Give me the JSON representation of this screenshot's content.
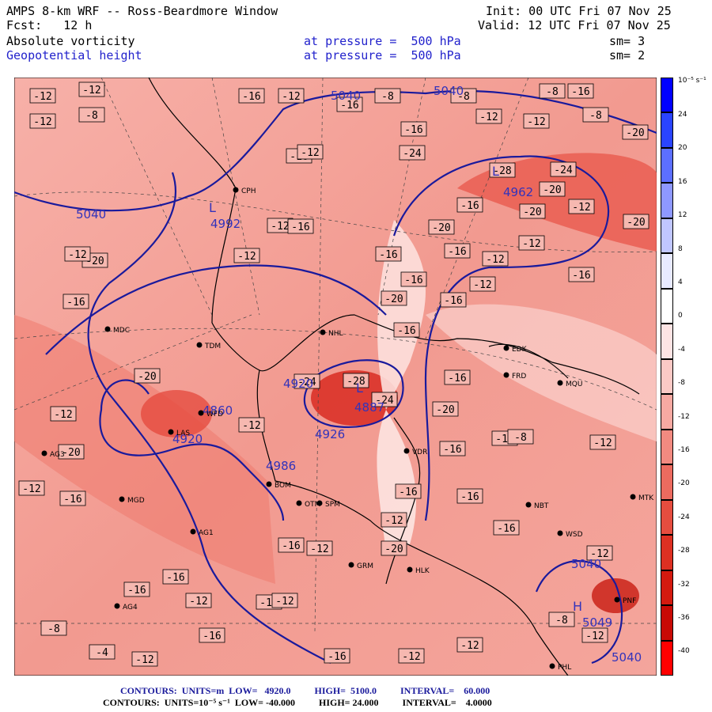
{
  "header": {
    "model": "AMPS 8-km WRF -- Ross-Beardmore Window",
    "init": "Init: 00 UTC Fri 07 Nov 25",
    "fcst": "Fcst:   12 h",
    "valid": "Valid: 12 UTC Fri 07 Nov 25",
    "field1": {
      "name": "Absolute vorticity",
      "level": "at pressure =  500 hPa",
      "smooth": "sm= 3"
    },
    "field2": {
      "name": "Geopotential height",
      "level": "at pressure =  500 hPa",
      "smooth": "sm= 2"
    }
  },
  "colorbar": {
    "unit": "10⁻⁵ s⁻¹",
    "ticks": [
      "24",
      "20",
      "16",
      "12",
      "8",
      "4",
      "0",
      "-4",
      "-8",
      "-12",
      "-16",
      "-20",
      "-24",
      "-28",
      "-32",
      "-36",
      "-40"
    ],
    "colors": [
      "#0000ff",
      "#2a44ff",
      "#5c6fff",
      "#8e98ff",
      "#c0c6ff",
      "#e8eaff",
      "#ffffff",
      "#fde4e4",
      "#fbc9c5",
      "#f7a9a2",
      "#f28a80",
      "#ec6b5f",
      "#e54d3f",
      "#dd3022",
      "#d41a0f",
      "#c80a05",
      "#ff0000"
    ]
  },
  "map": {
    "stations": [
      "CPH",
      "MDC",
      "TDM",
      "WFD",
      "LAS",
      "AG3",
      "MGD",
      "AG1",
      "AG4",
      "BOM",
      "OTM",
      "SPM",
      "VDR",
      "HLK",
      "NHL",
      "EDK",
      "FRD",
      "MQU",
      "NBT",
      "MTK",
      "WSD",
      "PNF",
      "PHL",
      "GRM"
    ],
    "height_labels": [
      "5040",
      "5040",
      "5040",
      "4962",
      "4992",
      "4920",
      "4920",
      "4926",
      "4986",
      "4887",
      "4860",
      "5040",
      "5049",
      "5040"
    ],
    "pressure_centers": [
      "L",
      "L",
      "L",
      "H"
    ],
    "vort_labels": [
      "-12",
      "-12",
      "-12",
      "-8",
      "-16",
      "-12",
      "-16",
      "-8",
      "-8",
      "-8",
      "-16",
      "-12",
      "-12",
      "-8",
      "-20",
      "-24",
      "-28",
      "-24",
      "-20",
      "-20",
      "-16",
      "-16",
      "-20",
      "-12",
      "-20",
      "-16",
      "-16",
      "-12",
      "-12",
      "-16",
      "-16",
      "-12",
      "-16",
      "-20",
      "-16",
      "-16",
      "-20",
      "-24",
      "-28",
      "-24",
      "-20",
      "-16",
      "-16",
      "-16",
      "-16",
      "-12",
      "-16",
      "-12",
      "-16",
      "-12",
      "-12",
      "-20",
      "-12",
      "-16",
      "-16",
      "-20",
      "-12",
      "-12",
      "-12",
      "-16",
      "-16",
      "-16",
      "-12",
      "-12",
      "-12",
      "-20",
      "-16",
      "-16",
      "-8",
      "-4",
      "-12",
      "-16",
      "-16",
      "-12",
      "-12",
      "-8",
      "-12",
      "-12",
      "-8",
      "-12"
    ]
  },
  "footer": {
    "line1": "CONTOURS:  UNITS=m  LOW=   4920.0          HIGH=  5100.0          INTERVAL=    60.000",
    "line2": "CONTOURS:  UNITS=10⁻⁵ s⁻¹  LOW= -40.000          HIGH= 24.000          INTERVAL=    4.0000"
  }
}
